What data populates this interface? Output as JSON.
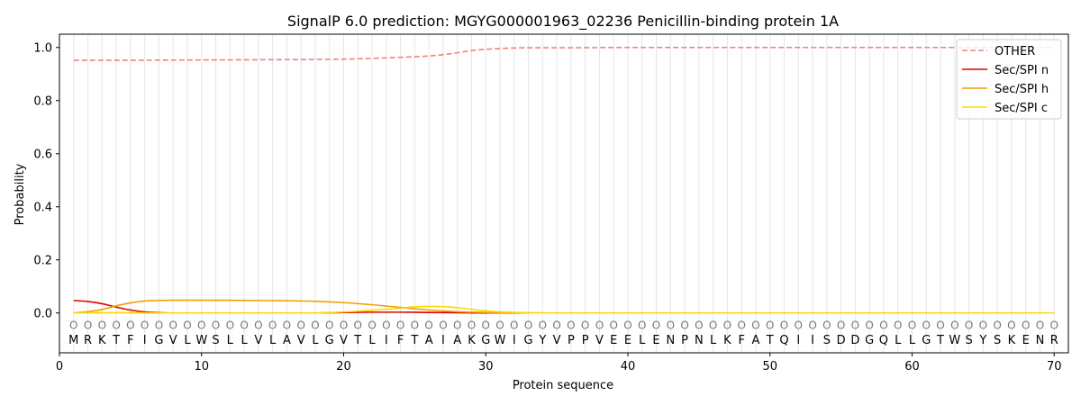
{
  "chart_data": {
    "type": "line",
    "title": "SignalP 6.0 prediction: MGYG000001963_02236 Penicillin-binding protein 1A",
    "xlabel": "Protein sequence",
    "ylabel": "Probability",
    "xlim": [
      0,
      71
    ],
    "ylim": [
      -0.15,
      1.05
    ],
    "x_ticks": [
      0,
      10,
      20,
      30,
      40,
      50,
      60,
      70
    ],
    "y_ticks": [
      0.0,
      0.2,
      0.4,
      0.6,
      0.8,
      1.0
    ],
    "y_tick_labels": [
      "0.0",
      "0.2",
      "0.4",
      "0.6",
      "0.8",
      "1.0"
    ],
    "legend_position": "top-right",
    "sequence": [
      "M",
      "R",
      "K",
      "T",
      "F",
      "I",
      "G",
      "V",
      "L",
      "W",
      "S",
      "L",
      "L",
      "V",
      "L",
      "A",
      "V",
      "L",
      "G",
      "V",
      "T",
      "L",
      "I",
      "F",
      "T",
      "A",
      "I",
      "A",
      "K",
      "G",
      "W",
      "I",
      "G",
      "Y",
      "V",
      "P",
      "P",
      "V",
      "E",
      "E",
      "L",
      "E",
      "N",
      "P",
      "N",
      "L",
      "K",
      "F",
      "A",
      "T",
      "Q",
      "I",
      "I",
      "S",
      "D",
      "D",
      "G",
      "Q",
      "L",
      "L",
      "G",
      "T",
      "W",
      "S",
      "Y",
      "S",
      "K",
      "E",
      "N",
      "R"
    ],
    "state_label": "O",
    "series": [
      {
        "name": "OTHER",
        "color": "#f08080",
        "style": "dashed",
        "x": [
          1,
          5,
          10,
          15,
          18,
          20,
          22,
          24,
          26,
          27,
          28,
          29,
          30,
          31,
          32,
          33,
          35,
          40,
          50,
          60,
          70
        ],
        "values": [
          0.952,
          0.952,
          0.953,
          0.954,
          0.955,
          0.956,
          0.959,
          0.963,
          0.968,
          0.973,
          0.98,
          0.988,
          0.993,
          0.996,
          0.998,
          0.999,
          0.999,
          1.0,
          1.0,
          1.0,
          1.0
        ]
      },
      {
        "name": "Sec/SPI n",
        "color": "#e00000",
        "style": "solid",
        "x": [
          1,
          2,
          3,
          4,
          5,
          6,
          7,
          8,
          10,
          15,
          18,
          20,
          22,
          24,
          26,
          28,
          30,
          35,
          40,
          50,
          60,
          70
        ],
        "values": [
          0.047,
          0.043,
          0.035,
          0.022,
          0.011,
          0.004,
          0.001,
          0.0,
          0.0,
          0.0,
          0.0,
          0.002,
          0.003,
          0.003,
          0.002,
          0.001,
          0.0,
          0.0,
          0.0,
          0.0,
          0.0,
          0.0
        ]
      },
      {
        "name": "Sec/SPI h",
        "color": "#f0a000",
        "style": "solid",
        "x": [
          1,
          2,
          3,
          4,
          5,
          6,
          7,
          8,
          10,
          14,
          16,
          18,
          20,
          22,
          24,
          26,
          28,
          30,
          32,
          35,
          40,
          50,
          60,
          70
        ],
        "values": [
          0.0,
          0.005,
          0.013,
          0.027,
          0.038,
          0.045,
          0.047,
          0.048,
          0.048,
          0.047,
          0.046,
          0.044,
          0.039,
          0.031,
          0.021,
          0.011,
          0.005,
          0.002,
          0.001,
          0.0,
          0.0,
          0.0,
          0.0,
          0.0
        ]
      },
      {
        "name": "Sec/SPI c",
        "color": "#ffd700",
        "style": "solid",
        "x": [
          1,
          3,
          5,
          7,
          10,
          15,
          18,
          20,
          22,
          24,
          25,
          26,
          27,
          28,
          29,
          30,
          31,
          32,
          34,
          40,
          50,
          60,
          70
        ],
        "values": [
          0.0,
          0.001,
          0.001,
          0.0,
          0.0,
          0.0,
          0.0,
          0.004,
          0.01,
          0.018,
          0.023,
          0.025,
          0.024,
          0.02,
          0.014,
          0.008,
          0.004,
          0.002,
          0.0,
          0.0,
          0.0,
          0.0,
          0.0
        ]
      }
    ]
  }
}
